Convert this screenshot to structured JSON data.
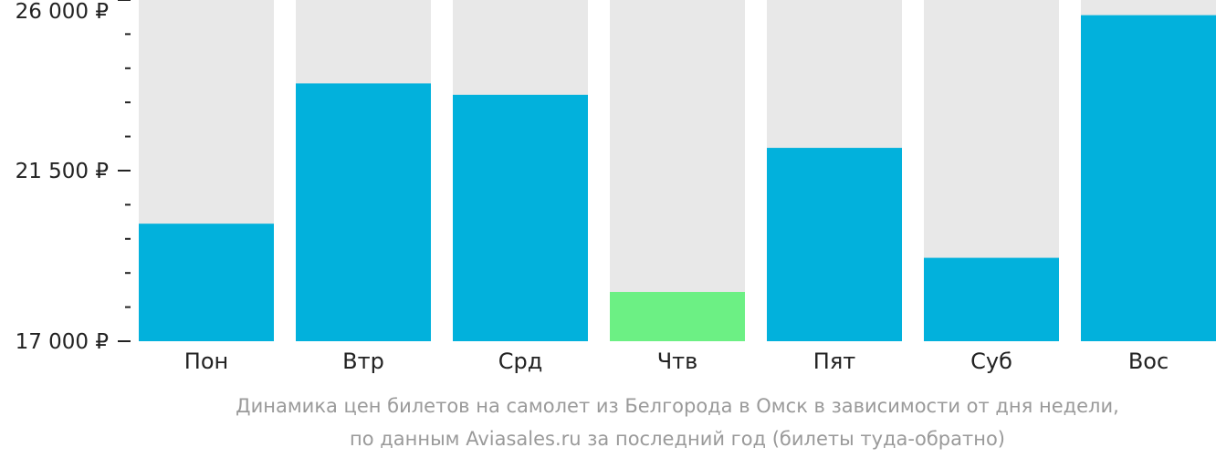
{
  "chart_data": {
    "type": "bar",
    "categories": [
      "Пон",
      "Втр",
      "Срд",
      "Чтв",
      "Пят",
      "Суб",
      "Вос"
    ],
    "values": [
      20100,
      23800,
      23500,
      18300,
      22100,
      19200,
      25600
    ],
    "ylim": [
      17000,
      26000
    ],
    "y_major_ticks": [
      {
        "value": 17000,
        "label": "17 000 ₽"
      },
      {
        "value": 21500,
        "label": "21 500 ₽"
      },
      {
        "value": 26000,
        "label": "26 000 ₽"
      }
    ],
    "y_minor_step": 900,
    "caption_lines": [
      "Динамика цен билетов на самолет из Белгорода в Омск в зависимости от дня недели,",
      "по данным Aviasales.ru за последний год (билеты туда-обратно)"
    ],
    "colors": {
      "bar": "#02b1dc",
      "bar_min": "#6cf084",
      "background_bar": "#e8e8e8",
      "axis": "#222222",
      "caption": "#9a9a9a"
    },
    "highlight": "min",
    "grid": false,
    "legend": "none"
  }
}
